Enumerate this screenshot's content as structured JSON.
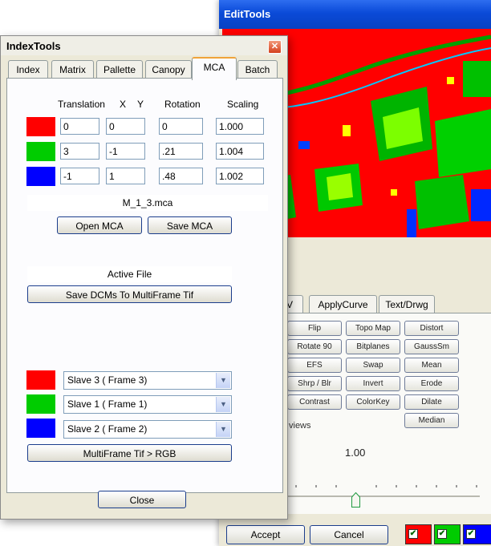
{
  "edit_tools": {
    "title": "EditTools",
    "tabs": [
      "SV",
      "ApplyCurve",
      "Text/Drwg"
    ],
    "tool_buttons": [
      [
        "Flip",
        "Topo Map",
        "Distort"
      ],
      [
        "Rotate 90",
        "Bitplanes",
        "GaussSm"
      ],
      [
        "EFS",
        "Swap",
        "Mean"
      ],
      [
        "Shrp / Blr",
        "Invert",
        "Erode"
      ],
      [
        "Contrast",
        "ColorKey",
        "Dilate"
      ],
      [
        "",
        "",
        "Median"
      ]
    ],
    "views_label": "views",
    "value": "1.00",
    "accept_label": "Accept",
    "cancel_label": "Cancel",
    "channel_colors": [
      "#ff0000",
      "#00cc00",
      "#0000ff"
    ]
  },
  "index_tools": {
    "title": "IndexTools",
    "close_glyph": "✕",
    "tabs": [
      "Index",
      "Matrix",
      "Pallette",
      "Canopy",
      "MCA",
      "Batch"
    ],
    "active_tab": "MCA",
    "headers": {
      "translation": "Translation",
      "x": "X",
      "y": "Y",
      "rotation": "Rotation",
      "scaling": "Scaling"
    },
    "rows": [
      {
        "color": "#ff0000",
        "x": "0",
        "y": "0",
        "rotation": "0",
        "scaling": "1.000"
      },
      {
        "color": "#00cc00",
        "x": "3",
        "y": "-1",
        "rotation": ".21",
        "scaling": "1.004"
      },
      {
        "color": "#0000ff",
        "x": "-1",
        "y": "1",
        "rotation": ".48",
        "scaling": "1.002"
      }
    ],
    "mca_file": "M_1_3.mca",
    "open_mca_label": "Open MCA",
    "save_mca_label": "Save MCA",
    "active_file_label": "Active File",
    "save_dcms_label": "Save DCMs To MultiFrame Tif",
    "slaves": [
      {
        "color": "#ff0000",
        "value": "Slave 3 ( Frame 3)"
      },
      {
        "color": "#00cc00",
        "value": "Slave 1 ( Frame 1)"
      },
      {
        "color": "#0000ff",
        "value": "Slave 2 ( Frame 2)"
      }
    ],
    "multiframe_label": "MultiFrame Tif > RGB",
    "close_label": "Close"
  }
}
